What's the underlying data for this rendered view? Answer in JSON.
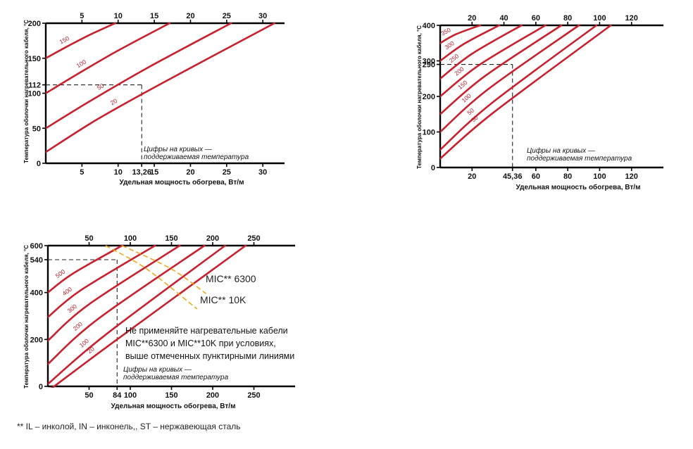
{
  "colors": {
    "curve": "#c8202d",
    "curve_label": "#b01e2a",
    "axis": "#000000",
    "limit": "#f0a818"
  },
  "footnote": "** IL – инколой, IN – инконель,, ST – нержавеющая сталь",
  "chart_data": [
    {
      "type": "line",
      "ylabel": "Температура оболочки нагревательного кабеля, °С",
      "xlabel": "Удельная мощность обогрева, Вт/м",
      "xlim": [
        0,
        33
      ],
      "ylim": [
        0,
        200
      ],
      "x_ticks_top": [
        "5",
        "10",
        "15",
        "20",
        "25",
        "30"
      ],
      "x_ticks_bottom": [
        "5",
        "10",
        "13,26",
        "15",
        "20",
        "25",
        "30"
      ],
      "y_ticks": [
        "0",
        "50",
        "100",
        "112",
        "150",
        "200"
      ],
      "note_line1": "Цифры на кривых —",
      "note_line2": "поддерживаемая температура",
      "reference": {
        "x": 13.26,
        "y": 112
      },
      "series": [
        {
          "name": "150",
          "x": [
            0,
            3,
            6,
            9.6
          ],
          "y": [
            150,
            167,
            183,
            200
          ]
        },
        {
          "name": "100",
          "x": [
            0,
            4,
            10,
            17.1
          ],
          "y": [
            100,
            125,
            161,
            200
          ]
        },
        {
          "name": "50",
          "x": [
            0,
            6,
            14,
            25.6
          ],
          "y": [
            50,
            88,
            136,
            200
          ]
        },
        {
          "name": "20",
          "x": [
            0,
            7,
            16,
            31.6
          ],
          "y": [
            16,
            62,
            114,
            200
          ]
        }
      ]
    },
    {
      "type": "line",
      "ylabel": "Температура оболочки нагревательного кабеля, °С",
      "xlabel": "Удельная мощность обогрева, Вт/м",
      "xlim": [
        0,
        140
      ],
      "ylim": [
        0,
        400
      ],
      "x_ticks_top": [
        "20",
        "40",
        "60",
        "80",
        "100",
        "120"
      ],
      "x_ticks_bottom": [
        "20",
        "45,36",
        "60",
        "80",
        "100",
        "120"
      ],
      "y_ticks": [
        "0",
        "100",
        "200",
        "290",
        "300",
        "400"
      ],
      "note_line1": "Цифры на кривых —",
      "note_line2": "поддерживаемая температура",
      "reference": {
        "x": 45.36,
        "y": 290
      },
      "series": [
        {
          "name": "350",
          "x": [
            0,
            10,
            25
          ],
          "y": [
            350,
            375,
            400
          ]
        },
        {
          "name": "300",
          "x": [
            0,
            15,
            37
          ],
          "y": [
            300,
            348,
            400
          ]
        },
        {
          "name": "250",
          "x": [
            0,
            20,
            51
          ],
          "y": [
            250,
            320,
            400
          ]
        },
        {
          "name": "200",
          "x": [
            0,
            25,
            66
          ],
          "y": [
            200,
            290,
            400
          ]
        },
        {
          "name": "150",
          "x": [
            0,
            28,
            76
          ],
          "y": [
            150,
            257,
            400
          ]
        },
        {
          "name": "100",
          "x": [
            0,
            30,
            87
          ],
          "y": [
            100,
            220,
            400
          ]
        },
        {
          "name": "50",
          "x": [
            0,
            32,
            98
          ],
          "y": [
            50,
            180,
            400
          ]
        },
        {
          "name": "30",
          "x": [
            0,
            33,
            107
          ],
          "y": [
            25,
            153,
            400
          ]
        }
      ]
    },
    {
      "type": "line",
      "ylabel": "Температура оболочки нагревательного кабеля, °С",
      "xlabel": "Удельная мощность обогрева, Вт/м",
      "xlim": [
        0,
        300
      ],
      "ylim": [
        0,
        600
      ],
      "x_ticks_top": [
        "50",
        "100",
        "150",
        "200",
        "250"
      ],
      "x_ticks_bottom": [
        "50",
        "84",
        "100",
        "150",
        "200",
        "250"
      ],
      "y_ticks": [
        "0",
        "200",
        "400",
        "540",
        "600"
      ],
      "note_line1": "Цифры на кривых —",
      "note_line2": "поддерживаемая температура",
      "reference": {
        "x": 84,
        "y": 540
      },
      "series": [
        {
          "name": "500",
          "x": [
            0,
            30,
            90
          ],
          "y": [
            400,
            480,
            600
          ]
        },
        {
          "name": "400",
          "x": [
            0,
            40,
            130
          ],
          "y": [
            295,
            410,
            600
          ]
        },
        {
          "name": "300",
          "x": [
            0,
            50,
            160
          ],
          "y": [
            195,
            350,
            600
          ]
        },
        {
          "name": "200",
          "x": [
            0,
            60,
            190
          ],
          "y": [
            95,
            285,
            600
          ]
        },
        {
          "name": "100",
          "x": [
            0,
            70,
            215
          ],
          "y": [
            10,
            220,
            600
          ]
        },
        {
          "name": "20",
          "x": [
            0,
            80,
            240
          ],
          "y": [
            -20,
            190,
            600
          ]
        }
      ],
      "limits": [
        {
          "name": "MIC** 6300",
          "x": [
            90,
            150,
            192
          ],
          "y": [
            600,
            500,
            395
          ]
        },
        {
          "name": "MIC** 10K",
          "x": [
            70,
            120,
            181
          ],
          "y": [
            600,
            500,
            330
          ]
        }
      ],
      "warning": [
        "Не применяйте нагревательные кабели",
        "MIC**6300 и MIC**10K при условиях,",
        "выше отмеченных пунктирными линиями"
      ]
    }
  ]
}
